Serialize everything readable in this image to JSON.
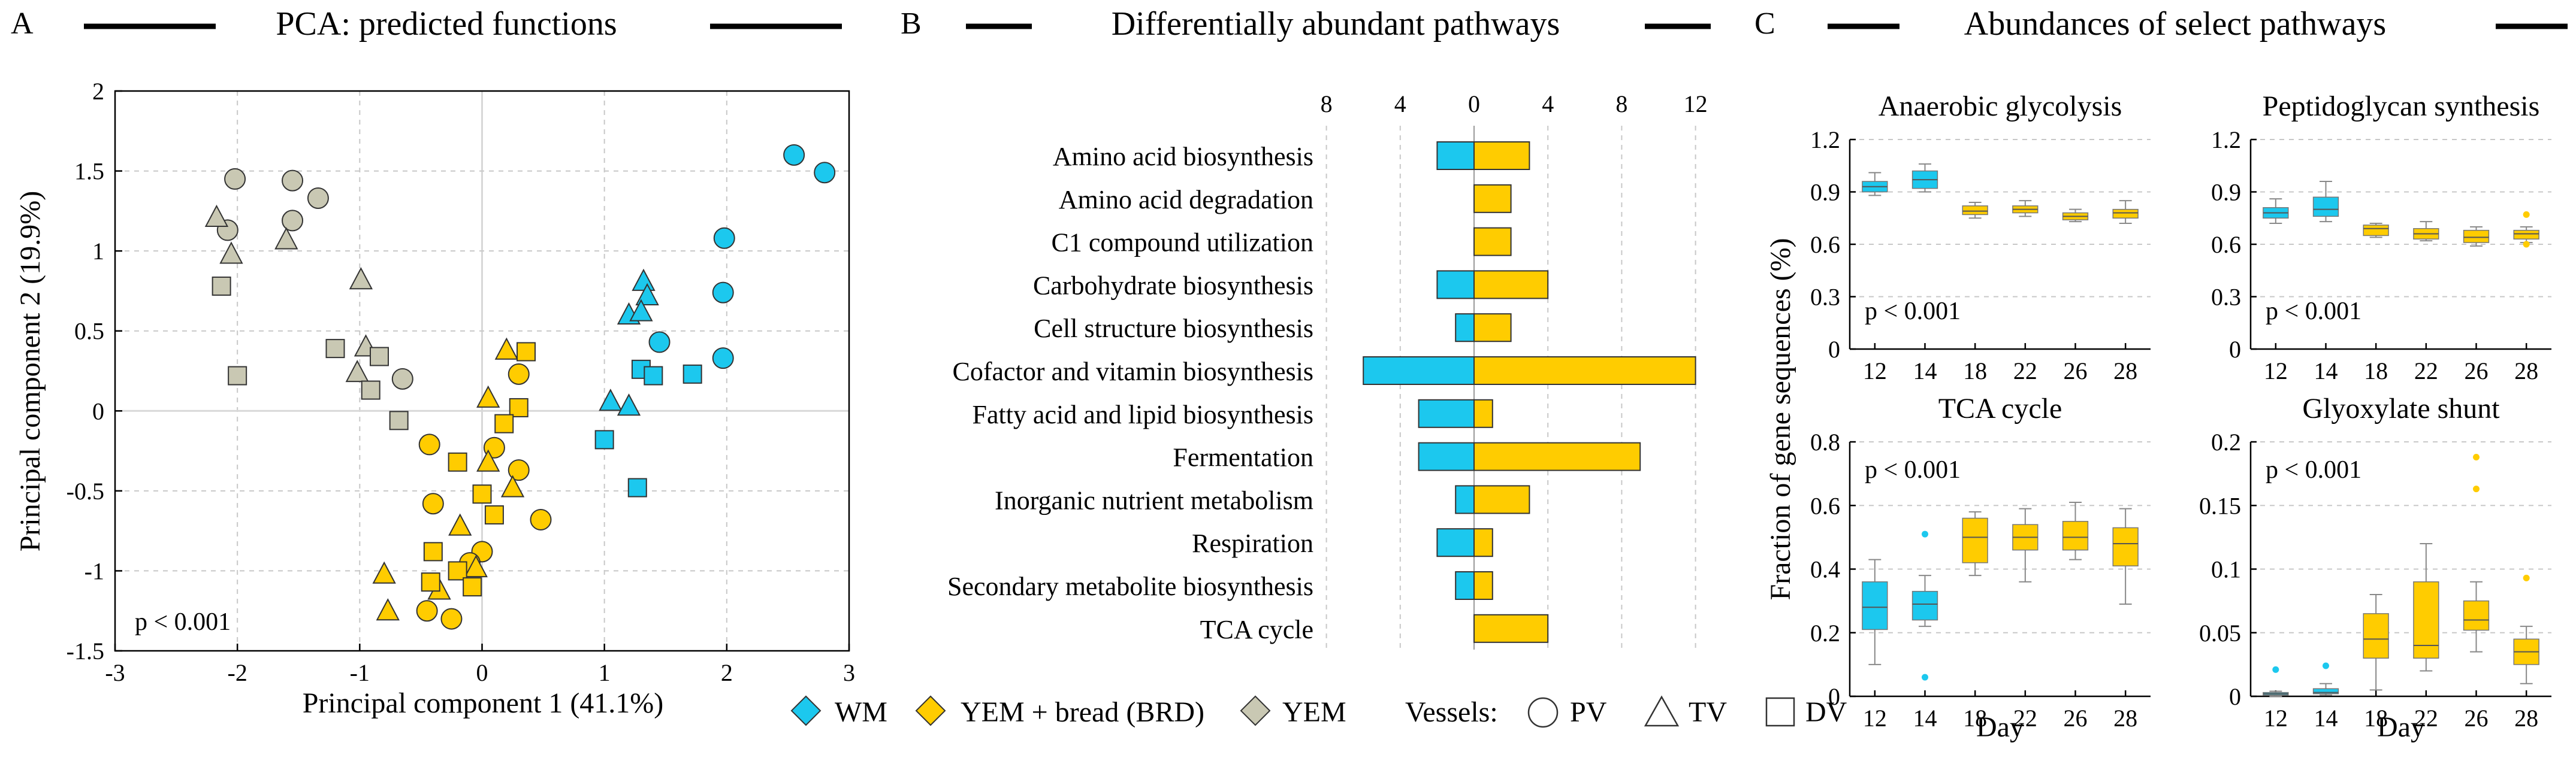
{
  "colors": {
    "wm": "#1cc8ee",
    "yem_brd": "#ffcc00",
    "yem": "#c9c8b3",
    "edge": "#333333",
    "grid": "#c8c8c8"
  },
  "panel_a": {
    "letter": "A",
    "title": "PCA: predicted functions",
    "p_text": "p < 0.001",
    "chart_data": {
      "type": "scatter",
      "title": "PCA: predicted functions",
      "xlabel": "Principal component 1 (41.1%)",
      "ylabel": "Principal component 2 (19.9%)",
      "xlim": [
        -3,
        3
      ],
      "ylim": [
        -1.5,
        2
      ],
      "xticks": [
        "-3",
        "-2",
        "-1",
        "0",
        "1",
        "2",
        "3"
      ],
      "yticks": [
        "-1.5",
        "-1",
        "-0.5",
        "0",
        "0.5",
        "1",
        "1.5",
        "2"
      ],
      "grid": true,
      "points": [
        {
          "x": 2.55,
          "y": 1.6,
          "group": "WM",
          "vessel": "PV"
        },
        {
          "x": 2.8,
          "y": 1.49,
          "group": "WM",
          "vessel": "PV"
        },
        {
          "x": 1.98,
          "y": 1.08,
          "group": "WM",
          "vessel": "PV"
        },
        {
          "x": 1.97,
          "y": 0.74,
          "group": "WM",
          "vessel": "PV"
        },
        {
          "x": 1.97,
          "y": 0.33,
          "group": "WM",
          "vessel": "PV"
        },
        {
          "x": 1.45,
          "y": 0.43,
          "group": "WM",
          "vessel": "PV"
        },
        {
          "x": 1.32,
          "y": 0.81,
          "group": "WM",
          "vessel": "TV"
        },
        {
          "x": 1.2,
          "y": 0.6,
          "group": "WM",
          "vessel": "TV"
        },
        {
          "x": 1.35,
          "y": 0.72,
          "group": "WM",
          "vessel": "TV"
        },
        {
          "x": 1.3,
          "y": 0.62,
          "group": "WM",
          "vessel": "TV"
        },
        {
          "x": 1.05,
          "y": 0.06,
          "group": "WM",
          "vessel": "TV"
        },
        {
          "x": 1.2,
          "y": 0.03,
          "group": "WM",
          "vessel": "TV"
        },
        {
          "x": 1.3,
          "y": 0.26,
          "group": "WM",
          "vessel": "DV"
        },
        {
          "x": 1.4,
          "y": 0.22,
          "group": "WM",
          "vessel": "DV"
        },
        {
          "x": 1.72,
          "y": 0.23,
          "group": "WM",
          "vessel": "DV"
        },
        {
          "x": 1.0,
          "y": -0.18,
          "group": "WM",
          "vessel": "DV"
        },
        {
          "x": 1.27,
          "y": -0.48,
          "group": "WM",
          "vessel": "DV"
        },
        {
          "x": -0.43,
          "y": -0.21,
          "group": "YEM + bread (BRD)",
          "vessel": "PV"
        },
        {
          "x": 0.1,
          "y": -0.23,
          "group": "YEM + bread (BRD)",
          "vessel": "PV"
        },
        {
          "x": 0.3,
          "y": -0.37,
          "group": "YEM + bread (BRD)",
          "vessel": "PV"
        },
        {
          "x": -0.4,
          "y": -0.58,
          "group": "YEM + bread (BRD)",
          "vessel": "PV"
        },
        {
          "x": 0.48,
          "y": -0.68,
          "group": "YEM + bread (BRD)",
          "vessel": "PV"
        },
        {
          "x": 0.3,
          "y": 0.23,
          "group": "YEM + bread (BRD)",
          "vessel": "PV"
        },
        {
          "x": 0.0,
          "y": -0.88,
          "group": "YEM + bread (BRD)",
          "vessel": "PV"
        },
        {
          "x": -0.45,
          "y": -1.25,
          "group": "YEM + bread (BRD)",
          "vessel": "PV"
        },
        {
          "x": -0.25,
          "y": -1.3,
          "group": "YEM + bread (BRD)",
          "vessel": "PV"
        },
        {
          "x": -0.1,
          "y": -0.95,
          "group": "YEM + bread (BRD)",
          "vessel": "PV"
        },
        {
          "x": 0.2,
          "y": 0.38,
          "group": "YEM + bread (BRD)",
          "vessel": "TV"
        },
        {
          "x": 0.05,
          "y": 0.08,
          "group": "YEM + bread (BRD)",
          "vessel": "TV"
        },
        {
          "x": 0.05,
          "y": -0.32,
          "group": "YEM + bread (BRD)",
          "vessel": "TV"
        },
        {
          "x": 0.25,
          "y": -0.48,
          "group": "YEM + bread (BRD)",
          "vessel": "TV"
        },
        {
          "x": -0.18,
          "y": -0.72,
          "group": "YEM + bread (BRD)",
          "vessel": "TV"
        },
        {
          "x": -0.8,
          "y": -1.02,
          "group": "YEM + bread (BRD)",
          "vessel": "TV"
        },
        {
          "x": -0.77,
          "y": -1.25,
          "group": "YEM + bread (BRD)",
          "vessel": "TV"
        },
        {
          "x": -0.05,
          "y": -0.98,
          "group": "YEM + bread (BRD)",
          "vessel": "TV"
        },
        {
          "x": -0.35,
          "y": -1.12,
          "group": "YEM + bread (BRD)",
          "vessel": "TV"
        },
        {
          "x": 0.36,
          "y": 0.37,
          "group": "YEM + bread (BRD)",
          "vessel": "DV"
        },
        {
          "x": 0.3,
          "y": 0.02,
          "group": "YEM + bread (BRD)",
          "vessel": "DV"
        },
        {
          "x": 0.18,
          "y": -0.08,
          "group": "YEM + bread (BRD)",
          "vessel": "DV"
        },
        {
          "x": -0.2,
          "y": -0.32,
          "group": "YEM + bread (BRD)",
          "vessel": "DV"
        },
        {
          "x": 0.0,
          "y": -0.52,
          "group": "YEM + bread (BRD)",
          "vessel": "DV"
        },
        {
          "x": 0.1,
          "y": -0.65,
          "group": "YEM + bread (BRD)",
          "vessel": "DV"
        },
        {
          "x": -0.4,
          "y": -0.88,
          "group": "YEM + bread (BRD)",
          "vessel": "DV"
        },
        {
          "x": -0.2,
          "y": -1.0,
          "group": "YEM + bread (BRD)",
          "vessel": "DV"
        },
        {
          "x": -0.42,
          "y": -1.07,
          "group": "YEM + bread (BRD)",
          "vessel": "DV"
        },
        {
          "x": -0.08,
          "y": -1.1,
          "group": "YEM + bread (BRD)",
          "vessel": "DV"
        },
        {
          "x": -2.02,
          "y": 1.45,
          "group": "YEM",
          "vessel": "PV"
        },
        {
          "x": -1.55,
          "y": 1.44,
          "group": "YEM",
          "vessel": "PV"
        },
        {
          "x": -1.34,
          "y": 1.33,
          "group": "YEM",
          "vessel": "PV"
        },
        {
          "x": -1.55,
          "y": 1.19,
          "group": "YEM",
          "vessel": "PV"
        },
        {
          "x": -2.08,
          "y": 1.13,
          "group": "YEM",
          "vessel": "PV"
        },
        {
          "x": -0.65,
          "y": 0.2,
          "group": "YEM",
          "vessel": "PV"
        },
        {
          "x": -2.17,
          "y": 1.21,
          "group": "YEM",
          "vessel": "TV"
        },
        {
          "x": -2.05,
          "y": 0.98,
          "group": "YEM",
          "vessel": "TV"
        },
        {
          "x": -1.6,
          "y": 1.07,
          "group": "YEM",
          "vessel": "TV"
        },
        {
          "x": -0.99,
          "y": 0.82,
          "group": "YEM",
          "vessel": "TV"
        },
        {
          "x": -0.95,
          "y": 0.4,
          "group": "YEM",
          "vessel": "TV"
        },
        {
          "x": -1.02,
          "y": 0.24,
          "group": "YEM",
          "vessel": "TV"
        },
        {
          "x": -2.13,
          "y": 0.78,
          "group": "YEM",
          "vessel": "DV"
        },
        {
          "x": -1.2,
          "y": 0.39,
          "group": "YEM",
          "vessel": "DV"
        },
        {
          "x": -0.84,
          "y": 0.34,
          "group": "YEM",
          "vessel": "DV"
        },
        {
          "x": -0.91,
          "y": 0.13,
          "group": "YEM",
          "vessel": "DV"
        },
        {
          "x": -2.0,
          "y": 0.22,
          "group": "YEM",
          "vessel": "DV"
        },
        {
          "x": -0.68,
          "y": -0.06,
          "group": "YEM",
          "vessel": "DV"
        }
      ]
    }
  },
  "panel_b": {
    "letter": "B",
    "title": "Differentially abundant pathways",
    "chart_data": {
      "type": "bar",
      "orientation": "horizontal",
      "title": "Differentially abundant pathways",
      "xticks": [
        "8",
        "4",
        "0",
        "4",
        "8",
        "12"
      ],
      "xlim": [
        -8,
        12
      ],
      "categories": [
        "Amino acid biosynthesis",
        "Amino acid degradation",
        "C1 compound utilization",
        "Carbohydrate biosynthesis",
        "Cell structure biosynthesis",
        "Cofactor and vitamin biosynthesis",
        "Fatty acid and lipid biosynthesis",
        "Fermentation",
        "Inorganic nutrient metabolism",
        "Respiration",
        "Secondary metabolite biosynthesis",
        "TCA cycle"
      ],
      "series": [
        {
          "name": "WM",
          "values": [
            2,
            0,
            0,
            2,
            1,
            6,
            3,
            3,
            1,
            2,
            1,
            0
          ]
        },
        {
          "name": "YEM + bread (BRD)",
          "values": [
            3,
            2,
            2,
            4,
            2,
            12,
            1,
            9,
            3,
            1,
            1,
            4
          ]
        }
      ]
    }
  },
  "panel_c": {
    "letter": "C",
    "title": "Abundances of select pathways",
    "ylabel": "Fraction of gene sequences (%)",
    "xlabel": "Day",
    "p_text": "p < 0.001",
    "chart_data": [
      {
        "type": "box",
        "title": "Anaerobic glycolysis",
        "categories": [
          "12",
          "14",
          "18",
          "22",
          "26",
          "28"
        ],
        "groups": [
          "WM",
          "WM",
          "YEM + bread (BRD)",
          "YEM + bread (BRD)",
          "YEM + bread (BRD)",
          "YEM + bread (BRD)"
        ],
        "ylim": [
          0,
          1.2
        ],
        "yticks": [
          "0",
          "0.3",
          "0.6",
          "0.9",
          "1.2"
        ],
        "boxes": [
          {
            "min": 0.88,
            "q1": 0.9,
            "median": 0.93,
            "q3": 0.96,
            "max": 1.01,
            "outliers": []
          },
          {
            "min": 0.9,
            "q1": 0.92,
            "median": 0.97,
            "q3": 1.02,
            "max": 1.06,
            "outliers": []
          },
          {
            "min": 0.75,
            "q1": 0.77,
            "median": 0.79,
            "q3": 0.82,
            "max": 0.84,
            "outliers": []
          },
          {
            "min": 0.76,
            "q1": 0.78,
            "median": 0.8,
            "q3": 0.82,
            "max": 0.85,
            "outliers": []
          },
          {
            "min": 0.73,
            "q1": 0.74,
            "median": 0.76,
            "q3": 0.78,
            "max": 0.8,
            "outliers": []
          },
          {
            "min": 0.72,
            "q1": 0.75,
            "median": 0.78,
            "q3": 0.8,
            "max": 0.85,
            "outliers": []
          }
        ]
      },
      {
        "type": "box",
        "title": "Peptidoglycan synthesis",
        "categories": [
          "12",
          "14",
          "18",
          "22",
          "26",
          "28"
        ],
        "groups": [
          "WM",
          "WM",
          "YEM + bread (BRD)",
          "YEM + bread (BRD)",
          "YEM + bread (BRD)",
          "YEM + bread (BRD)"
        ],
        "ylim": [
          0,
          1.2
        ],
        "yticks": [
          "0",
          "0.3",
          "0.6",
          "0.9",
          "1.2"
        ],
        "boxes": [
          {
            "min": 0.72,
            "q1": 0.75,
            "median": 0.78,
            "q3": 0.81,
            "max": 0.86,
            "outliers": []
          },
          {
            "min": 0.73,
            "q1": 0.76,
            "median": 0.8,
            "q3": 0.87,
            "max": 0.96,
            "outliers": []
          },
          {
            "min": 0.64,
            "q1": 0.65,
            "median": 0.69,
            "q3": 0.71,
            "max": 0.72,
            "outliers": []
          },
          {
            "min": 0.62,
            "q1": 0.63,
            "median": 0.66,
            "q3": 0.69,
            "max": 0.73,
            "outliers": []
          },
          {
            "min": 0.59,
            "q1": 0.61,
            "median": 0.64,
            "q3": 0.68,
            "max": 0.7,
            "outliers": []
          },
          {
            "min": 0.61,
            "q1": 0.63,
            "median": 0.66,
            "q3": 0.68,
            "max": 0.7,
            "outliers": [
              0.77,
              0.6
            ]
          }
        ]
      },
      {
        "type": "box",
        "title": "TCA cycle",
        "categories": [
          "12",
          "14",
          "18",
          "22",
          "26",
          "28"
        ],
        "groups": [
          "WM",
          "WM",
          "YEM + bread (BRD)",
          "YEM + bread (BRD)",
          "YEM + bread (BRD)",
          "YEM + bread (BRD)"
        ],
        "ylim": [
          0,
          0.8
        ],
        "yticks": [
          "0",
          "0.2",
          "0.4",
          "0.6",
          "0.8"
        ],
        "boxes": [
          {
            "min": 0.1,
            "q1": 0.21,
            "median": 0.28,
            "q3": 0.36,
            "max": 0.43,
            "outliers": []
          },
          {
            "min": 0.22,
            "q1": 0.24,
            "median": 0.29,
            "q3": 0.33,
            "max": 0.38,
            "outliers": [
              0.51,
              0.06
            ]
          },
          {
            "min": 0.38,
            "q1": 0.42,
            "median": 0.5,
            "q3": 0.56,
            "max": 0.58,
            "outliers": []
          },
          {
            "min": 0.36,
            "q1": 0.46,
            "median": 0.5,
            "q3": 0.54,
            "max": 0.59,
            "outliers": []
          },
          {
            "min": 0.43,
            "q1": 0.46,
            "median": 0.5,
            "q3": 0.55,
            "max": 0.61,
            "outliers": []
          },
          {
            "min": 0.29,
            "q1": 0.41,
            "median": 0.48,
            "q3": 0.53,
            "max": 0.59,
            "outliers": []
          }
        ]
      },
      {
        "type": "box",
        "title": "Glyoxylate shunt",
        "categories": [
          "12",
          "14",
          "18",
          "22",
          "26",
          "28"
        ],
        "groups": [
          "WM",
          "WM",
          "YEM + bread (BRD)",
          "YEM + bread (BRD)",
          "YEM + bread (BRD)",
          "YEM + bread (BRD)"
        ],
        "ylim": [
          0,
          0.2
        ],
        "yticks": [
          "0",
          "0.05",
          "0.1",
          "0.15",
          "0.2"
        ],
        "boxes": [
          {
            "min": 0.0,
            "q1": 0.001,
            "median": 0.002,
            "q3": 0.003,
            "max": 0.004,
            "outliers": [
              0.021
            ]
          },
          {
            "min": 0.001,
            "q1": 0.002,
            "median": 0.003,
            "q3": 0.006,
            "max": 0.01,
            "outliers": [
              0.024
            ]
          },
          {
            "min": 0.005,
            "q1": 0.03,
            "median": 0.045,
            "q3": 0.065,
            "max": 0.08,
            "outliers": []
          },
          {
            "min": 0.02,
            "q1": 0.03,
            "median": 0.04,
            "q3": 0.09,
            "max": 0.12,
            "outliers": []
          },
          {
            "min": 0.035,
            "q1": 0.052,
            "median": 0.06,
            "q3": 0.075,
            "max": 0.09,
            "outliers": [
              0.188,
              0.163
            ]
          },
          {
            "min": 0.01,
            "q1": 0.025,
            "median": 0.035,
            "q3": 0.045,
            "max": 0.055,
            "outliers": [
              0.093
            ]
          }
        ]
      }
    ]
  },
  "legend": {
    "items": [
      {
        "label": "WM"
      },
      {
        "label": "YEM + bread (BRD)"
      },
      {
        "label": "YEM"
      }
    ],
    "vessels_label": "Vessels:",
    "vessels": [
      {
        "label": "PV"
      },
      {
        "label": "TV"
      },
      {
        "label": "DV"
      }
    ]
  }
}
